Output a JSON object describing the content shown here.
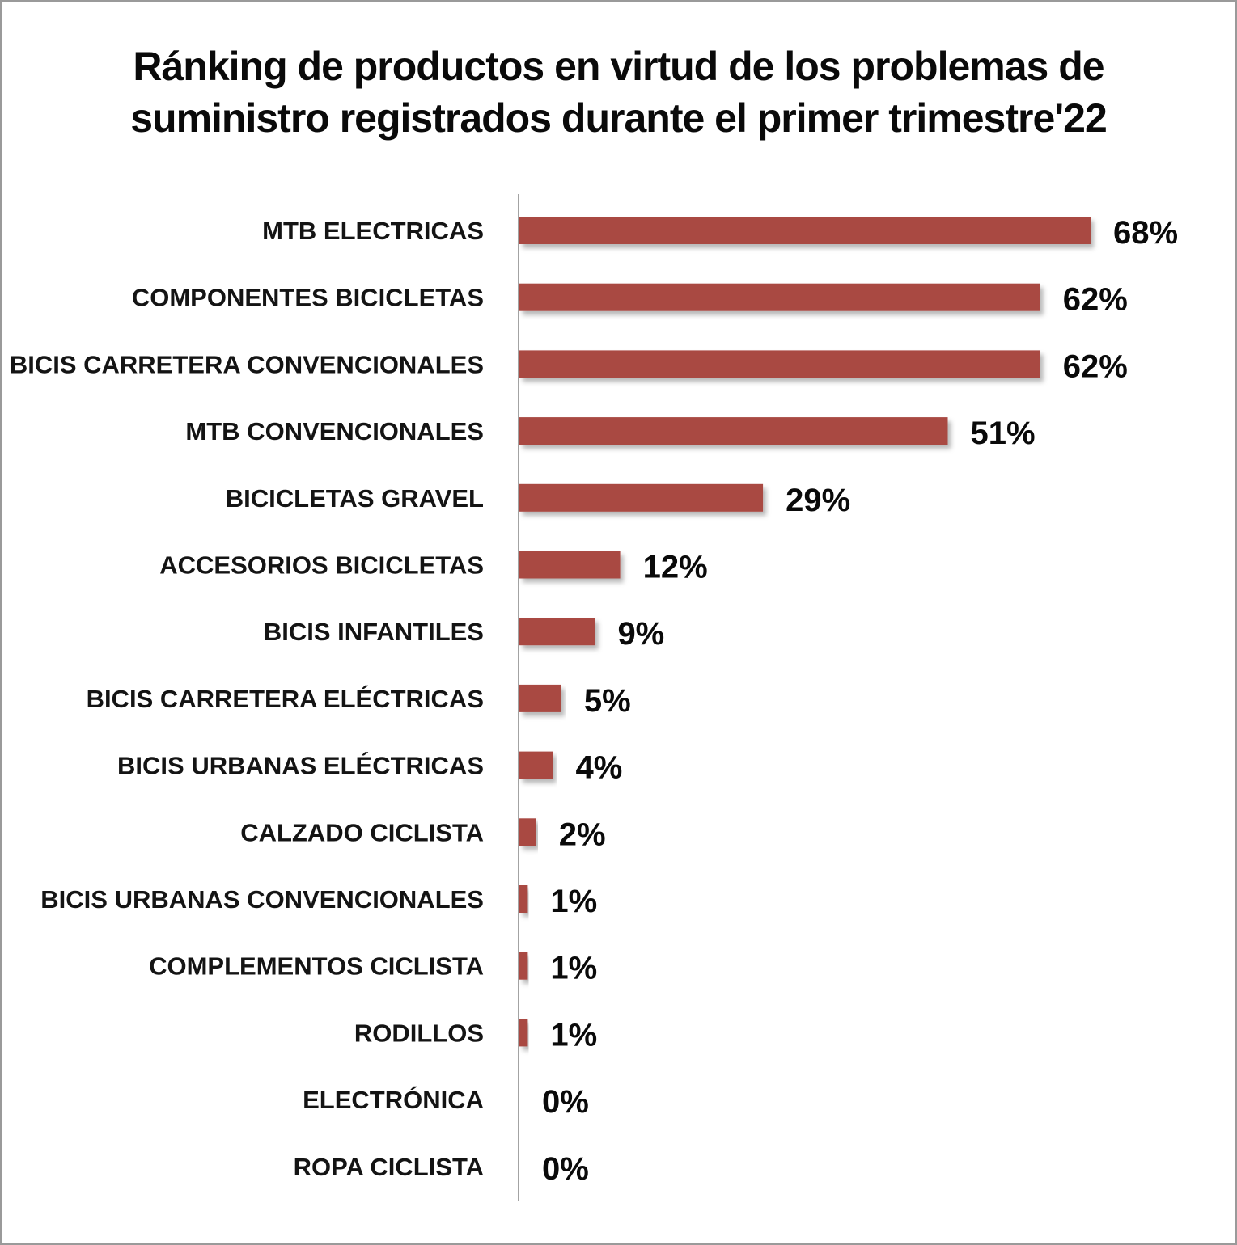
{
  "chart_data": {
    "type": "bar",
    "orientation": "horizontal",
    "title_lines": [
      "Ránking de productos en virtud de los problemas de",
      "suministro registrados durante el primer trimestre'22"
    ],
    "categories": [
      "MTB ELECTRICAS",
      "COMPONENTES BICICLETAS",
      "BICIS CARRETERA CONVENCIONALES",
      "MTB CONVENCIONALES",
      "BICICLETAS GRAVEL",
      "ACCESORIOS BICICLETAS",
      "BICIS INFANTILES",
      "BICIS CARRETERA ELÉCTRICAS",
      "BICIS URBANAS ELÉCTRICAS",
      "CALZADO CICLISTA",
      "BICIS URBANAS CONVENCIONALES",
      "COMPLEMENTOS CICLISTA",
      "RODILLOS",
      "ELECTRÓNICA",
      "ROPA CICLISTA"
    ],
    "values": [
      68,
      62,
      62,
      51,
      29,
      12,
      9,
      5,
      4,
      2,
      1,
      1,
      1,
      0,
      0
    ],
    "data_labels": [
      "68%",
      "62%",
      "62%",
      "51%",
      "29%",
      "12%",
      "9%",
      "5%",
      "4%",
      "2%",
      "1%",
      "1%",
      "1%",
      "0%",
      "0%"
    ],
    "unit": "%",
    "xlim": [
      0,
      68
    ],
    "grid": false,
    "legend": "none",
    "bar_color": "#a94843"
  }
}
